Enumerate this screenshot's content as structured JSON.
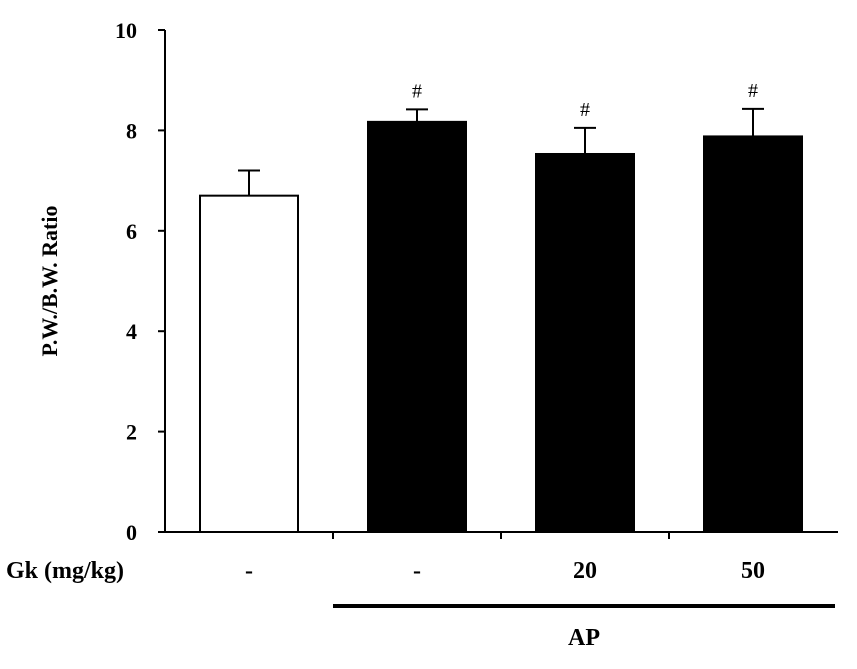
{
  "chart_data": {
    "type": "bar",
    "title": "",
    "ylabel": "P.W./B.W. Ratio",
    "ylim": [
      0,
      10
    ],
    "yticks": [
      0,
      2,
      4,
      6,
      8,
      10
    ],
    "categories": [
      "-",
      "-",
      "20",
      "50"
    ],
    "x_row_label": "Gk (mg/kg)",
    "group_label": "AP",
    "values": [
      6.7,
      8.17,
      7.53,
      7.88
    ],
    "error": [
      0.5,
      0.25,
      0.52,
      0.55
    ],
    "fill_colors": [
      "#ffffff",
      "#000000",
      "#000000",
      "#000000"
    ],
    "significance": [
      "",
      "#",
      "#",
      "#"
    ],
    "grid": false,
    "legend": "none"
  }
}
